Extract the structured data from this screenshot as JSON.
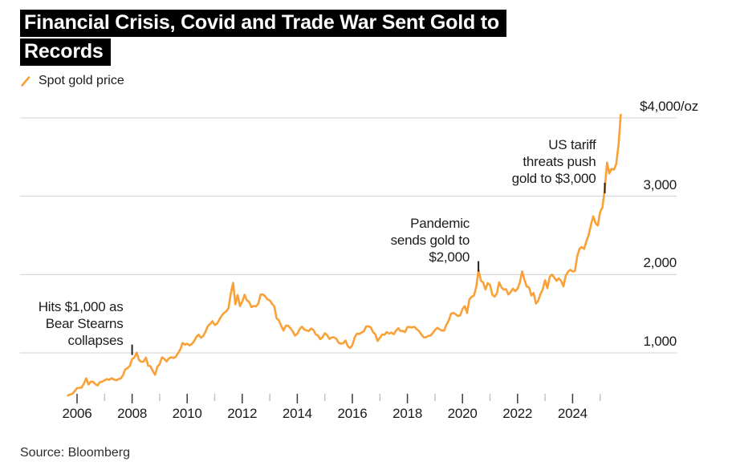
{
  "title": {
    "line1": "Financial Crisis, Covid and Trade War Sent Gold to",
    "line2": "Records"
  },
  "legend": {
    "label": "Spot gold price",
    "marker": "slash-icon"
  },
  "source": "Source: Bloomberg",
  "colors": {
    "line": "#F9A037",
    "grid": "#D0D0D0",
    "tick_major": "#3A3A3A",
    "tick_minor": "#C2C2C2",
    "annotation_tick": "#222222",
    "title_bg": "#000000",
    "title_fg": "#FFFFFF"
  },
  "chart_data": {
    "type": "line",
    "title": "Financial Crisis, Covid and Trade War Sent Gold to Records",
    "xlabel": "",
    "ylabel": "$/oz",
    "legend_position": "top-left",
    "grid": "horizontal",
    "x_range": [
      2005.6,
      2025.9
    ],
    "y_range": [
      400,
      4150
    ],
    "y_axis": {
      "ticks": [
        {
          "value": 4000,
          "label": "$4,000/oz"
        },
        {
          "value": 3000,
          "label": "3,000"
        },
        {
          "value": 2000,
          "label": "2,000"
        },
        {
          "value": 1000,
          "label": "1,000"
        }
      ]
    },
    "x_axis": {
      "major_years": [
        2006,
        2008,
        2010,
        2012,
        2014,
        2016,
        2018,
        2020,
        2022,
        2024
      ],
      "minor_years": [
        2007,
        2009,
        2011,
        2013,
        2015,
        2017,
        2019,
        2021,
        2023,
        2025
      ]
    },
    "annotations": [
      {
        "lines": [
          "Hits $1,000 as",
          "Bear Stearns",
          "collapses"
        ],
        "anchor": {
          "year": 2008.0,
          "value": 1055
        }
      },
      {
        "lines": [
          "Pandemic",
          "sends gold to",
          "$2,000"
        ],
        "anchor": {
          "year": 2020.58,
          "value": 2120
        }
      },
      {
        "lines": [
          "US tariff",
          "threats push",
          "gold to $3,000"
        ],
        "anchor": {
          "year": 2025.17,
          "value": 3120
        }
      }
    ],
    "series": [
      {
        "name": "Spot gold price",
        "unit": "USD per ounce",
        "interval": "monthly",
        "start_decimal_year": 2005.6667,
        "values": [
          456,
          470,
          477,
          513,
          550,
          555,
          557,
          610,
          675,
          596,
          633,
          632,
          599,
          585,
          627,
          632,
          651,
          665,
          655,
          677,
          661,
          650,
          665,
          672,
          712,
          789,
          806,
          833,
          920,
          943,
          1003,
          910,
          885,
          889,
          940,
          836,
          830,
          770,
          720,
          822,
          858,
          943,
          924,
          890,
          928,
          945,
          934,
          949,
          996,
          1043,
          1127,
          1104,
          1118,
          1095,
          1113,
          1148,
          1205,
          1232,
          1193,
          1215,
          1271,
          1342,
          1369,
          1405,
          1356,
          1372,
          1424,
          1473,
          1510,
          1528,
          1572,
          1757,
          1895,
          1620,
          1739,
          1598,
          1652,
          1742,
          1673,
          1650,
          1585,
          1598,
          1593,
          1630,
          1744,
          1747,
          1721,
          1684,
          1671,
          1627,
          1593,
          1440,
          1414,
          1343,
          1286,
          1347,
          1348,
          1316,
          1275,
          1221,
          1244,
          1301,
          1336,
          1299,
          1288,
          1279,
          1311,
          1296,
          1238,
          1222,
          1175,
          1199,
          1251,
          1227,
          1178,
          1198,
          1199,
          1181,
          1130,
          1117,
          1124,
          1159,
          1086,
          1062,
          1097,
          1199,
          1246,
          1242,
          1260,
          1276,
          1337,
          1340,
          1327,
          1266,
          1238,
          1152,
          1192,
          1234,
          1231,
          1266,
          1246,
          1260,
          1236,
          1283,
          1315,
          1280,
          1282,
          1264,
          1331,
          1330,
          1325,
          1334,
          1303,
          1281,
          1238,
          1202,
          1198,
          1215,
          1221,
          1250,
          1292,
          1320,
          1301,
          1286,
          1284,
          1359,
          1413,
          1500,
          1511,
          1495,
          1471,
          1479,
          1561,
          1597,
          1510,
          1683,
          1716,
          1732,
          1843,
          2060,
          1922,
          1900,
          1810,
          1891,
          1867,
          1743,
          1718,
          1762,
          1900,
          1835,
          1807,
          1814,
          1745,
          1777,
          1820,
          1787,
          1817,
          1900,
          2040,
          1937,
          1848,
          1837,
          1733,
          1765,
          1630,
          1664,
          1750,
          1812,
          1928,
          1825,
          1969,
          2000,
          1962,
          1920,
          1951,
          1918,
          1849,
          1984,
          2036,
          2062,
          2039,
          2044,
          2230,
          2330,
          2351,
          2327,
          2426,
          2503,
          2635,
          2744,
          2657,
          2625,
          2798,
          2858,
          3085,
          3430,
          3290,
          3350,
          3340,
          3410,
          3650,
          4040
        ]
      }
    ]
  }
}
